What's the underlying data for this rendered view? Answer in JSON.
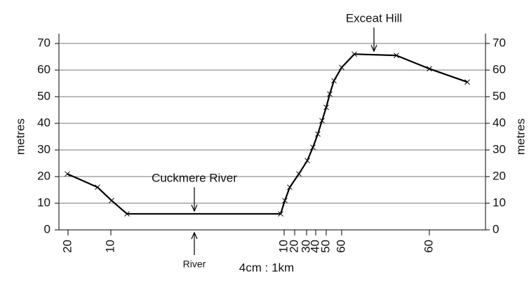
{
  "chart_data": {
    "type": "line",
    "ylabel": "metres",
    "y2label": "metres",
    "xlabel": "4cm : 1km",
    "x": [
      12,
      55,
      75,
      97,
      316,
      322,
      329,
      342,
      354,
      362,
      369,
      375,
      381,
      386,
      392,
      403,
      421,
      481,
      528,
      582
    ],
    "series": [
      {
        "color": "#000000",
        "values": [
          21,
          16,
          11,
          6,
          6,
          11,
          16,
          21,
          26,
          31,
          36,
          41,
          46,
          51,
          56,
          61,
          66,
          65.5,
          60.5,
          55.5
        ]
      }
    ],
    "xlim": [
      0,
      608
    ],
    "ylim": [
      0,
      70
    ],
    "yticks": [
      0,
      10,
      20,
      30,
      40,
      50,
      60,
      70
    ],
    "y2lim": [
      0,
      70
    ],
    "y2ticks": [
      0,
      10,
      20,
      30,
      40,
      50,
      60,
      70
    ],
    "xticks": [
      {
        "value": 13,
        "label": "20"
      },
      {
        "value": 74,
        "label": "10"
      },
      {
        "value": 321,
        "label": "10"
      },
      {
        "value": 336,
        "label": "20"
      },
      {
        "value": 353,
        "label": "30"
      },
      {
        "value": 366,
        "label": "40"
      },
      {
        "value": 381,
        "label": "50"
      },
      {
        "value": 403,
        "label": "60"
      },
      {
        "value": 528,
        "label": "60"
      }
    ],
    "grid": true,
    "annotations": [
      {
        "text": "Exceat Hill",
        "x": 449,
        "y": 66
      },
      {
        "text": "Cuckmere River",
        "x": 193,
        "y": 6
      }
    ],
    "bottom_annotation": {
      "text": "River",
      "x": 193
    }
  }
}
